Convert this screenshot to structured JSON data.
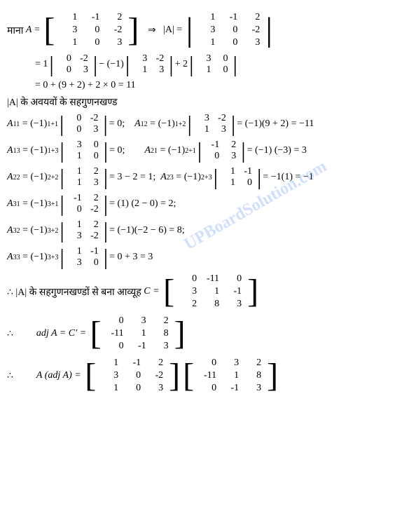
{
  "line1": {
    "prefix": "माना",
    "var": "A",
    "matrix": [
      [
        "1",
        "-1",
        "2"
      ],
      [
        "3",
        "0",
        "-2"
      ],
      [
        "1",
        "0",
        "3"
      ]
    ],
    "implies": "⇒",
    "det_label": "|A|"
  },
  "line2": {
    "prefix": "= 1",
    "m1": [
      [
        "0",
        "-2"
      ],
      [
        "0",
        "3"
      ]
    ],
    "mid1": "− (−1)",
    "m2": [
      [
        "3",
        "-2"
      ],
      [
        "1",
        "3"
      ]
    ],
    "mid2": "+ 2",
    "m3": [
      [
        "3",
        "0"
      ],
      [
        "1",
        "0"
      ]
    ]
  },
  "line3": "= 0 + (9 + 2) + 2 × 0 = 11",
  "line4": "|A| के अवयवों के सहगुणनखण्ड",
  "A11": {
    "label": "A",
    "sub": "11",
    "power": "1+1",
    "m": [
      [
        "0",
        "-2"
      ],
      [
        "0",
        "3"
      ]
    ],
    "result": "= 0;"
  },
  "A12": {
    "label": "A",
    "sub": "12",
    "power": "1+2",
    "m": [
      [
        "3",
        "-2"
      ],
      [
        "1",
        "3"
      ]
    ],
    "result": "= (−1)(9 + 2) = −11"
  },
  "A13": {
    "label": "A",
    "sub": "13",
    "power": "1+3",
    "m": [
      [
        "3",
        "0"
      ],
      [
        "1",
        "0"
      ]
    ],
    "result": "= 0;"
  },
  "A21": {
    "label": "A",
    "sub": "21",
    "power": "2+1",
    "m": [
      [
        "-1",
        "2"
      ],
      [
        "0",
        "3"
      ]
    ],
    "result": "= (−1) (−3) = 3"
  },
  "A22": {
    "label": "A",
    "sub": "22",
    "power": "2+2",
    "m": [
      [
        "1",
        "2"
      ],
      [
        "1",
        "3"
      ]
    ],
    "result": "= 3 − 2 = 1;"
  },
  "A23": {
    "label": "A",
    "sub": "23",
    "power": "2+3",
    "m": [
      [
        "1",
        "-1"
      ],
      [
        "1",
        "0"
      ]
    ],
    "result": "= −1(1) = −1"
  },
  "A31": {
    "label": "A",
    "sub": "31",
    "power": "3+1",
    "m": [
      [
        "-1",
        "2"
      ],
      [
        "0",
        "-2"
      ]
    ],
    "result": "= (1) (2 − 0) = 2;"
  },
  "A32": {
    "label": "A",
    "sub": "32",
    "power": "3+2",
    "m": [
      [
        "1",
        "2"
      ],
      [
        "3",
        "-2"
      ]
    ],
    "result": "= (−1)(−2 − 6) = 8;"
  },
  "A33": {
    "label": "A",
    "sub": "33",
    "power": "3+3",
    "m": [
      [
        "1",
        "-1"
      ],
      [
        "3",
        "0"
      ]
    ],
    "result": "= 0 + 3 = 3"
  },
  "line_C": {
    "prefix": "∴ |A| के सहगुणनखण्डों से बना आव्यूह",
    "var": "C =",
    "matrix": [
      [
        "0",
        "-11",
        "0"
      ],
      [
        "3",
        "1",
        "-1"
      ],
      [
        "2",
        "8",
        "3"
      ]
    ]
  },
  "line_adj": {
    "therefore": "∴",
    "label": "adj A = C′ =",
    "matrix": [
      [
        "0",
        "3",
        "2"
      ],
      [
        "-11",
        "1",
        "8"
      ],
      [
        "0",
        "-1",
        "3"
      ]
    ]
  },
  "line_final": {
    "therefore": "∴",
    "label": "A (adj A) =",
    "m1": [
      [
        "1",
        "-1",
        "2"
      ],
      [
        "3",
        "0",
        "-2"
      ],
      [
        "1",
        "0",
        "3"
      ]
    ],
    "m2": [
      [
        "0",
        "3",
        "2"
      ],
      [
        "-11",
        "1",
        "8"
      ],
      [
        "0",
        "-1",
        "3"
      ]
    ]
  },
  "watermark": "UPBoardSolution.com",
  "sym": {
    "eq": "=",
    "neg1": "(−1)"
  }
}
